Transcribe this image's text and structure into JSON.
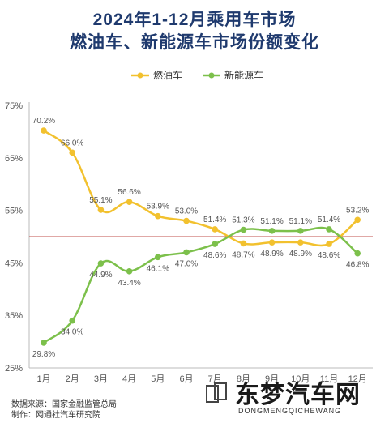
{
  "titles": {
    "line1": "2024年1-12月乘用车市场",
    "line2": "燃油车、新能源车市场份额变化"
  },
  "chart_data": {
    "type": "line",
    "categories": [
      "1月",
      "2月",
      "3月",
      "4月",
      "5月",
      "6月",
      "7月",
      "8月",
      "9月",
      "10月",
      "11月",
      "12月"
    ],
    "series": [
      {
        "name": "燃油车",
        "color": "#f2c12e",
        "values": [
          70.2,
          66.0,
          55.1,
          56.6,
          53.9,
          53.0,
          51.4,
          48.7,
          48.9,
          48.9,
          48.6,
          53.2
        ],
        "labels": [
          "70.2%",
          "66.0%",
          "55.1%",
          "56.6%",
          "53.9%",
          "53.0%",
          "51.4%",
          "48.7%",
          "48.9%",
          "48.9%",
          "48.6%",
          "53.2%"
        ]
      },
      {
        "name": "新能源车",
        "color": "#7cc04b",
        "values": [
          29.8,
          34.0,
          44.9,
          43.4,
          46.1,
          47.0,
          48.6,
          51.3,
          51.1,
          51.1,
          51.4,
          46.8
        ],
        "labels": [
          "29.8%",
          "34.0%",
          "44.9%",
          "43.4%",
          "46.1%",
          "47.0%",
          "48.6%",
          "51.3%",
          "51.1%",
          "51.1%",
          "51.4%",
          "46.8%"
        ]
      }
    ],
    "ylim": [
      25,
      75
    ],
    "yticks": [
      "25%",
      "35%",
      "45%",
      "55%",
      "65%",
      "75%"
    ],
    "yticks_values": [
      25,
      35,
      45,
      55,
      65,
      75
    ],
    "reference_line": 50,
    "reference_color": "#c0504d",
    "legend_position": "top-center",
    "grid": false
  },
  "footer": {
    "source": "数据来源：国家金融监管总局",
    "producer": "制作：网通社汽车研究院"
  },
  "watermark": {
    "name": "东梦汽车网",
    "domain": "DONGMENGQICHEWANG"
  }
}
